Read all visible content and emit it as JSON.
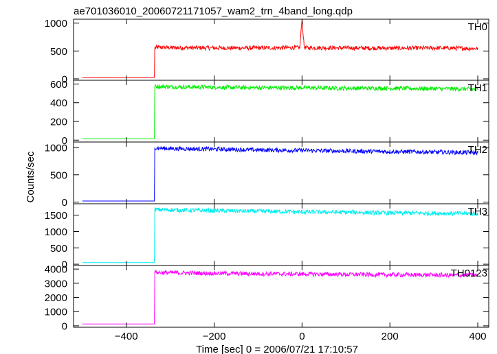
{
  "chart_data": {
    "type": "line",
    "title": "ae701036010_20060721171057_wam2_trn_4band_long.qdp",
    "xlabel": "Time [sec] 0 = 2006/07/21 17:10:57",
    "ylabel": "Counts/sec",
    "xlim": [
      -520,
      425
    ],
    "xticks": [
      -400,
      -200,
      0,
      200,
      400
    ],
    "grid": false,
    "panels": [
      {
        "name": "TH0",
        "color": "#ff0000",
        "ylim": [
          -25,
          1070
        ],
        "yticks": [
          0,
          500,
          1000
        ],
        "x": [
          -500,
          -340,
          -336,
          -335,
          -330,
          -300,
          -200,
          -100,
          -5,
          0,
          5,
          100,
          200,
          300,
          400
        ],
        "y": [
          25,
          25,
          25,
          560,
          565,
          560,
          555,
          555,
          560,
          1075,
          560,
          555,
          550,
          555,
          545
        ]
      },
      {
        "name": "TH1",
        "color": "#00ee00",
        "ylim": [
          -20,
          640
        ],
        "yticks": [
          0,
          200,
          400,
          600
        ],
        "x": [
          -500,
          -340,
          -336,
          -335,
          -330,
          -300,
          -200,
          -100,
          0,
          100,
          200,
          300,
          400
        ],
        "y": [
          15,
          15,
          15,
          575,
          575,
          570,
          565,
          560,
          560,
          555,
          555,
          550,
          545
        ]
      },
      {
        "name": "TH2",
        "color": "#0000ff",
        "ylim": [
          -30,
          1100
        ],
        "yticks": [
          0,
          500,
          1000
        ],
        "x": [
          -500,
          -340,
          -336,
          -335,
          -330,
          -300,
          -200,
          -100,
          0,
          100,
          200,
          300,
          400
        ],
        "y": [
          20,
          20,
          20,
          1000,
          990,
          980,
          970,
          955,
          945,
          935,
          925,
          915,
          905
        ]
      },
      {
        "name": "TH3",
        "color": "#00eeee",
        "ylim": [
          -40,
          1850
        ],
        "yticks": [
          0,
          500,
          1000,
          1500
        ],
        "x": [
          -500,
          -340,
          -336,
          -335,
          -330,
          -300,
          -200,
          -100,
          0,
          100,
          200,
          300,
          400
        ],
        "y": [
          50,
          50,
          50,
          1680,
          1670,
          1660,
          1640,
          1620,
          1600,
          1590,
          1570,
          1560,
          1550
        ]
      },
      {
        "name": "TH0123",
        "color": "#ff00ff",
        "ylim": [
          -100,
          4250
        ],
        "yticks": [
          0,
          1000,
          2000,
          3000,
          4000
        ],
        "x": [
          -500,
          -340,
          -336,
          -335,
          -330,
          -300,
          -200,
          -100,
          0,
          100,
          200,
          300,
          400
        ],
        "y": [
          130,
          130,
          130,
          3780,
          3760,
          3740,
          3700,
          3670,
          3650,
          3620,
          3600,
          3580,
          3560
        ]
      }
    ]
  }
}
